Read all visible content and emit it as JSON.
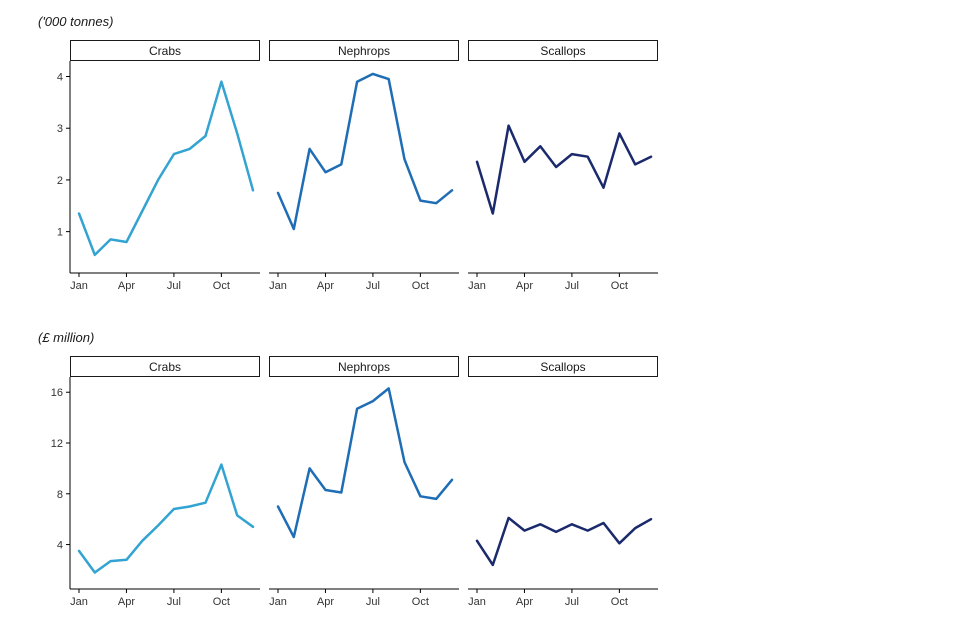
{
  "chart_data": [
    {
      "type": "line",
      "unit_label": "('000 tonnes)",
      "y_ticks": [
        1,
        2,
        3,
        4
      ],
      "ylim": [
        0.2,
        4.3
      ],
      "x_tick_labels": [
        "Jan",
        "Apr",
        "Jul",
        "Oct"
      ],
      "x_tick_months": [
        0,
        3,
        6,
        9
      ],
      "x": [
        "Jan",
        "Feb",
        "Mar",
        "Apr",
        "May",
        "Jun",
        "Jul",
        "Aug",
        "Sep",
        "Oct",
        "Nov",
        "Dec"
      ],
      "legend": "none",
      "grid": false,
      "facets": [
        {
          "label": "Crabs",
          "color": "#33A3D1",
          "values": [
            1.35,
            0.55,
            0.85,
            0.8,
            1.4,
            2.0,
            2.5,
            2.6,
            2.85,
            3.9,
            2.9,
            1.8
          ]
        },
        {
          "label": "Nephrops",
          "color": "#1F6DB5",
          "values": [
            1.75,
            1.05,
            2.6,
            2.15,
            2.3,
            3.9,
            4.05,
            3.95,
            2.4,
            1.6,
            1.55,
            1.8
          ]
        },
        {
          "label": "Scallops",
          "color": "#1A2A6C",
          "values": [
            2.35,
            1.35,
            3.05,
            2.35,
            2.65,
            2.25,
            2.5,
            2.45,
            1.85,
            2.9,
            2.3,
            2.45
          ]
        }
      ]
    },
    {
      "type": "line",
      "unit_label": "(£ million)",
      "y_ticks": [
        4,
        8,
        12,
        16
      ],
      "ylim": [
        0.5,
        17.2
      ],
      "x_tick_labels": [
        "Jan",
        "Apr",
        "Jul",
        "Oct"
      ],
      "x_tick_months": [
        0,
        3,
        6,
        9
      ],
      "x": [
        "Jan",
        "Feb",
        "Mar",
        "Apr",
        "May",
        "Jun",
        "Jul",
        "Aug",
        "Sep",
        "Oct",
        "Nov",
        "Dec"
      ],
      "legend": "none",
      "grid": false,
      "facets": [
        {
          "label": "Crabs",
          "color": "#33A3D1",
          "values": [
            3.5,
            1.8,
            2.7,
            2.8,
            4.3,
            5.5,
            6.8,
            7.0,
            7.3,
            10.3,
            6.3,
            5.4
          ]
        },
        {
          "label": "Nephrops",
          "color": "#1F6DB5",
          "values": [
            7.0,
            4.6,
            10.0,
            8.3,
            8.1,
            14.7,
            15.3,
            16.3,
            10.5,
            7.8,
            7.6,
            9.1
          ]
        },
        {
          "label": "Scallops",
          "color": "#1A2A6C",
          "values": [
            4.3,
            2.4,
            6.1,
            5.1,
            5.6,
            5.0,
            5.6,
            5.1,
            5.7,
            4.1,
            5.3,
            6.0
          ]
        }
      ]
    }
  ]
}
